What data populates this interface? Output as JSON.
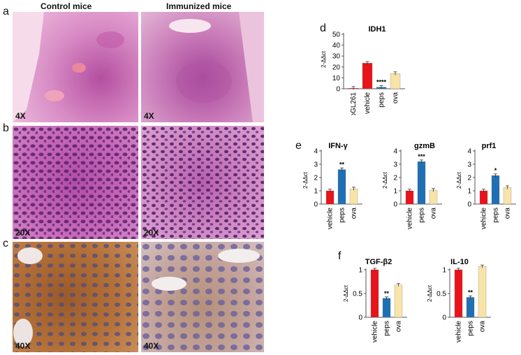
{
  "columns": {
    "left": "Control mice",
    "right": "Immunized mice"
  },
  "panel_labels": [
    "a",
    "b",
    "c",
    "d",
    "e",
    "f"
  ],
  "magnifications": {
    "row_a": "4X",
    "row_b": "20X",
    "row_c": "40X"
  },
  "colors": {
    "vehicle": "#e8131b",
    "peps": "#1f6fb4",
    "ova": "#f8e4a8",
    "pGL261": "#c8102e",
    "he_bg": "#e7a6d0",
    "ihc_bg": "#b7763e"
  },
  "chart_data": [
    {
      "id": "d",
      "type": "bar",
      "title": "IDH1",
      "ylabel": "2-ΔΔct",
      "ylim": [
        0,
        50
      ],
      "yticks": [
        0,
        10,
        20,
        30,
        40,
        50
      ],
      "categories": [
        "pGL261",
        "vehicle",
        "peps",
        "ova"
      ],
      "values": [
        0.5,
        23.5,
        1.5,
        14
      ],
      "labels": [
        "",
        "",
        "****",
        ""
      ],
      "colors": [
        "#c8102e",
        "#e8131b",
        "#1f6fb4",
        "#f8e4a8"
      ]
    },
    {
      "id": "e1",
      "type": "bar",
      "title": "IFN-γ",
      "ylabel": "2-ΔΔct",
      "ylim": [
        0,
        4
      ],
      "yticks": [
        0,
        1,
        2,
        3,
        4
      ],
      "categories": [
        "vehicle",
        "peps",
        "ova"
      ],
      "values": [
        1.0,
        2.6,
        1.15
      ],
      "labels": [
        "",
        "**",
        ""
      ],
      "colors": [
        "#e8131b",
        "#1f6fb4",
        "#f8e4a8"
      ]
    },
    {
      "id": "e2",
      "type": "bar",
      "title": "gzmB",
      "ylabel": "2-ΔΔct",
      "ylim": [
        0,
        4
      ],
      "yticks": [
        0,
        1,
        2,
        3,
        4
      ],
      "categories": [
        "vehicle",
        "peps",
        "ova"
      ],
      "values": [
        1.0,
        3.2,
        1.05
      ],
      "labels": [
        "",
        "***",
        ""
      ],
      "colors": [
        "#e8131b",
        "#1f6fb4",
        "#f8e4a8"
      ]
    },
    {
      "id": "e3",
      "type": "bar",
      "title": "prf1",
      "ylabel": "2-ΔΔct",
      "ylim": [
        0,
        4
      ],
      "yticks": [
        0,
        1,
        2,
        3,
        4
      ],
      "categories": [
        "vehicle",
        "peps",
        "ova"
      ],
      "values": [
        1.0,
        2.15,
        1.25
      ],
      "labels": [
        "",
        "*",
        ""
      ],
      "colors": [
        "#e8131b",
        "#1f6fb4",
        "#f8e4a8"
      ]
    },
    {
      "id": "f1",
      "type": "bar",
      "title": "TGF-β2",
      "ylabel": "2-ΔΔct",
      "ylim": [
        0,
        1
      ],
      "yticks": [
        0,
        0.5,
        1
      ],
      "categories": [
        "vehicle",
        "peps",
        "ova"
      ],
      "values": [
        1.0,
        0.4,
        0.68
      ],
      "labels": [
        "",
        "**",
        ""
      ],
      "colors": [
        "#e8131b",
        "#1f6fb4",
        "#f8e4a8"
      ]
    },
    {
      "id": "f2",
      "type": "bar",
      "title": "IL-10",
      "ylabel": "2-ΔΔct",
      "ylim": [
        0,
        1
      ],
      "yticks": [
        0,
        0.5,
        1
      ],
      "categories": [
        "vehicle",
        "peps",
        "ova"
      ],
      "values": [
        1.0,
        0.42,
        1.07
      ],
      "labels": [
        "",
        "**",
        ""
      ],
      "colors": [
        "#e8131b",
        "#1f6fb4",
        "#f8e4a8"
      ]
    }
  ]
}
